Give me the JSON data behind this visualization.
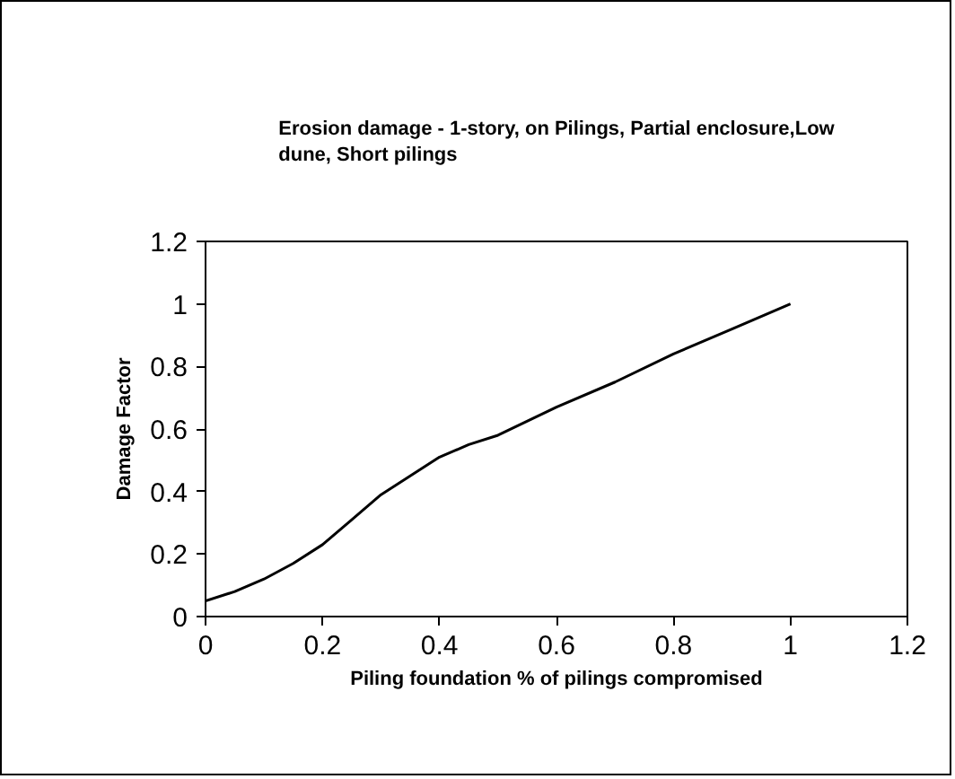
{
  "chart_data": {
    "type": "line",
    "title": "Erosion damage - 1-story, on Pilings, Partial enclosure,Low dune, Short pilings",
    "xlabel": "Piling foundation % of pilings compromised",
    "ylabel": "Damage Factor",
    "x": [
      0,
      0.05,
      0.1,
      0.15,
      0.2,
      0.25,
      0.3,
      0.35,
      0.4,
      0.45,
      0.5,
      0.6,
      0.7,
      0.8,
      0.9,
      1
    ],
    "series": [
      {
        "color": "#000000",
        "values": [
          0.05,
          0.08,
          0.12,
          0.17,
          0.23,
          0.31,
          0.39,
          0.45,
          0.51,
          0.55,
          0.58,
          0.67,
          0.75,
          0.84,
          0.92,
          1
        ]
      }
    ],
    "xlim": [
      0,
      1.2
    ],
    "ylim": [
      0,
      1.2
    ],
    "xticks": [
      0,
      0.2,
      0.4,
      0.6,
      0.8,
      1,
      1.2
    ],
    "yticks": [
      0,
      0.2,
      0.4,
      0.6,
      0.8,
      1,
      1.2
    ],
    "grid": false,
    "marker": "none",
    "line_style": "solid"
  }
}
